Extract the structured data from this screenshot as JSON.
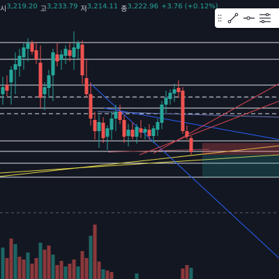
{
  "header": {
    "open_label": "시",
    "open_value": "3,219.20",
    "high_label": "고",
    "high_value": "3,233.79",
    "low_label": "저",
    "low_value": "3,214.11",
    "close_label": "종",
    "close_value": "3,222.96",
    "change_value": "+3.76 (+0.12%)"
  },
  "colors": {
    "background": "#131722",
    "up": "#26a69a",
    "down": "#ef5350",
    "level_line": "#e0e3eb",
    "trend_yellow": "#e6d94a",
    "trend_blue": "#2962ff",
    "trend_red": "#d64550"
  },
  "toolbar": {
    "tools": [
      "trend-line-icon",
      "horizontal-ray-icon",
      "fib-levels-icon"
    ]
  }
}
